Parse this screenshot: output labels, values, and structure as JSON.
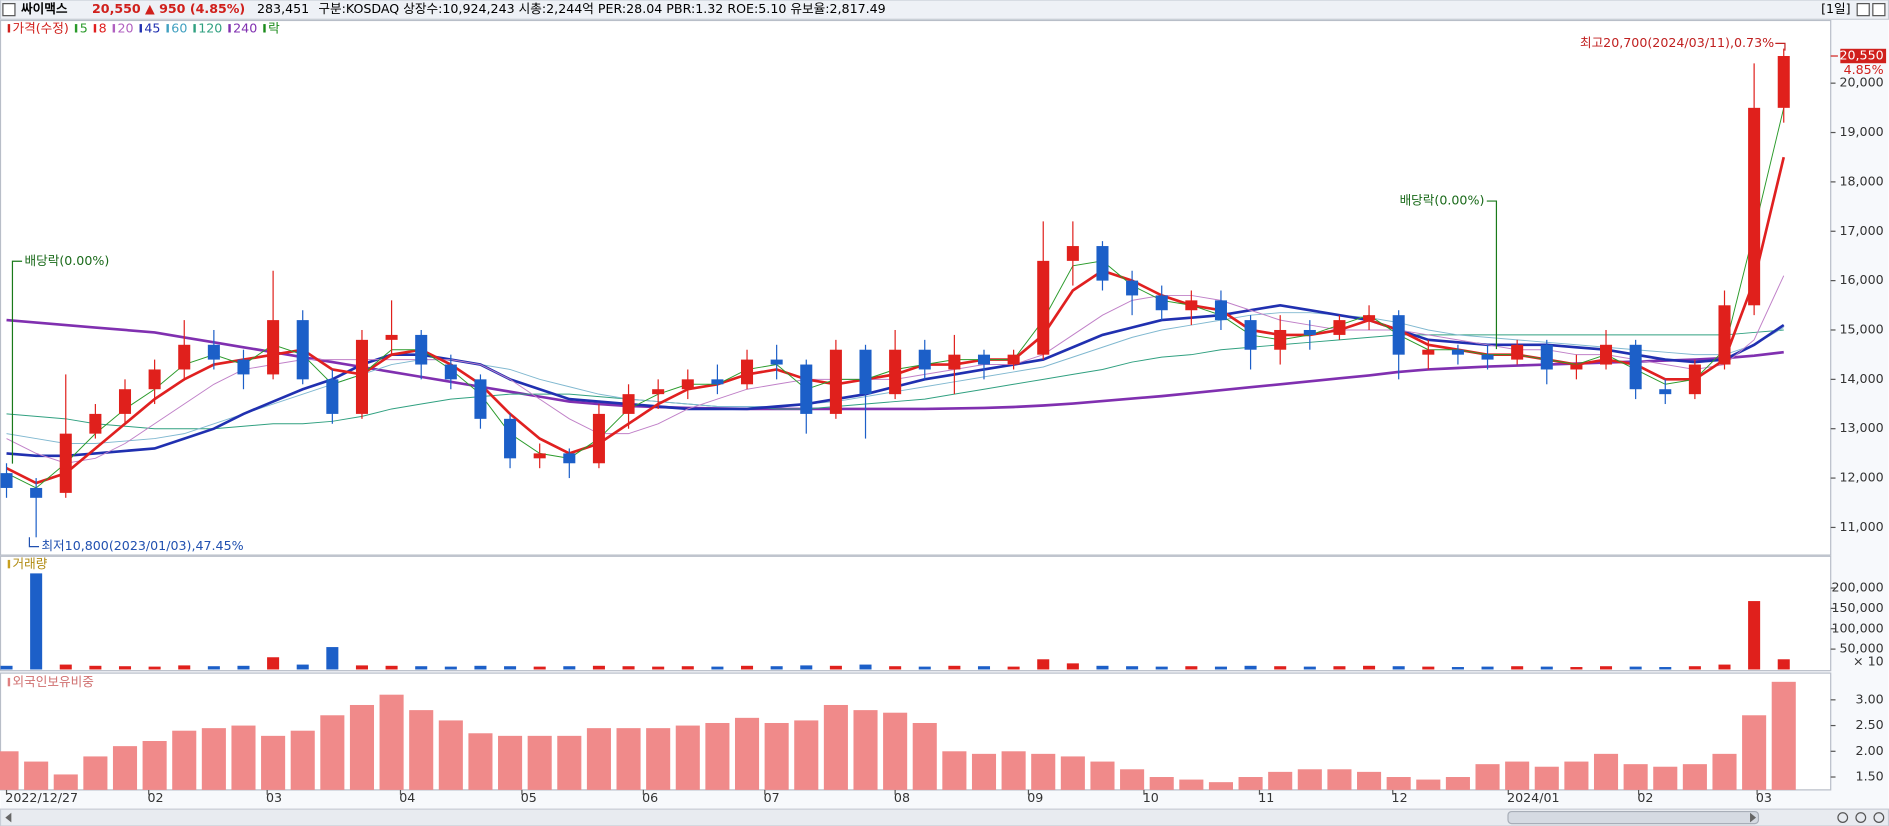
{
  "header": {
    "name": "싸이맥스",
    "price": "20,550",
    "change": "▲ 950 (4.85%)",
    "volume": "283,451",
    "info": "구분:KOSDAQ 상장수:10,924,243 시총:2,244억 PER:28.04 PBR:1.32 ROE:5.10 유보율:2,817.49",
    "period": "[1일]"
  },
  "chart_data": {
    "type": "candlestick",
    "legend": [
      {
        "name": "가격(수정)",
        "color": "#d0201c"
      },
      {
        "name": "5",
        "color": "#2a9a2a"
      },
      {
        "name": "8",
        "color": "#e02020"
      },
      {
        "name": "20",
        "color": "#b060c0"
      },
      {
        "name": "45",
        "color": "#2030b0"
      },
      {
        "name": "60",
        "color": "#40a0c0"
      },
      {
        "name": "120",
        "color": "#30a080"
      },
      {
        "name": "240",
        "color": "#8030b0"
      },
      {
        "name": "락",
        "color": "#1a8a1a"
      }
    ],
    "up_color": "#e0201c",
    "down_color": "#1c5fc8",
    "open": [
      12100,
      11800,
      11700,
      12900,
      13300,
      13800,
      14200,
      14700,
      14400,
      14100,
      15200,
      14000,
      13300,
      14800,
      14900,
      14300,
      14000,
      13200,
      12400,
      12500,
      12300,
      13300,
      13700,
      13800,
      14000,
      13900,
      14400,
      14300,
      13300,
      14600,
      13700,
      14600,
      14200,
      14500,
      14300,
      14500,
      16400,
      16700,
      16000,
      15700,
      15400,
      15600,
      15200,
      14600,
      15000,
      14900,
      15200,
      15300,
      14500,
      14600,
      14500,
      14400,
      14700,
      14200,
      14300,
      14700,
      13800,
      13700,
      14300,
      15500,
      19500
    ],
    "high": [
      12300,
      12000,
      14100,
      13500,
      14000,
      14400,
      15200,
      15000,
      14600,
      16200,
      15400,
      14200,
      15000,
      15600,
      15000,
      14500,
      14100,
      13300,
      12700,
      12600,
      13500,
      13900,
      14000,
      14200,
      14300,
      14600,
      14700,
      14400,
      14800,
      14700,
      15000,
      14800,
      14900,
      14600,
      14600,
      17200,
      17200,
      16800,
      16200,
      15900,
      15800,
      15800,
      15300,
      15300,
      15200,
      15300,
      15500,
      15400,
      14800,
      14700,
      14700,
      14800,
      14800,
      14500,
      15000,
      14800,
      14000,
      14400,
      15800,
      20400,
      20700
    ],
    "low": [
      11600,
      10800,
      11600,
      12800,
      13100,
      13500,
      14000,
      14200,
      13800,
      14000,
      13900,
      13100,
      13200,
      14500,
      14000,
      13800,
      13000,
      12200,
      12200,
      12000,
      12200,
      13000,
      13400,
      13600,
      13700,
      13800,
      14000,
      12900,
      13200,
      12800,
      13600,
      14000,
      13700,
      14000,
      14200,
      14400,
      15900,
      15800,
      15300,
      15200,
      15100,
      15000,
      14200,
      14300,
      14600,
      14800,
      15000,
      14000,
      14200,
      14300,
      14200,
      14300,
      13900,
      14000,
      14200,
      13600,
      13500,
      13600,
      14200,
      15300,
      19200
    ],
    "close": [
      11800,
      11600,
      12900,
      13300,
      13800,
      14200,
      14700,
      14400,
      14100,
      15200,
      14000,
      13300,
      14800,
      14900,
      14300,
      14000,
      13200,
      12400,
      12500,
      12300,
      13300,
      13700,
      13800,
      14000,
      13900,
      14400,
      14300,
      13300,
      14600,
      13700,
      14600,
      14200,
      14500,
      14300,
      14500,
      16400,
      16700,
      16000,
      15700,
      15400,
      15600,
      15200,
      14600,
      15000,
      14900,
      15200,
      15300,
      14500,
      14600,
      14500,
      14400,
      14700,
      14200,
      14300,
      14700,
      13800,
      13700,
      14300,
      15500,
      19500,
      20550
    ],
    "ma": [
      {
        "name": "240",
        "color": "#8030b0",
        "width": 2.2,
        "values": [
          15200,
          15150,
          15100,
          15050,
          15000,
          14950,
          14850,
          14750,
          14650,
          14550,
          14450,
          14350,
          14250,
          14150,
          14050,
          13950,
          13850,
          13750,
          13650,
          13550,
          13500,
          13460,
          13440,
          13420,
          13410,
          13400,
          13400,
          13400,
          13400,
          13400,
          13400,
          13400,
          13410,
          13420,
          13440,
          13470,
          13510,
          13560,
          13610,
          13660,
          13720,
          13780,
          13840,
          13900,
          13960,
          14020,
          14080,
          14150,
          14200,
          14230,
          14260,
          14280,
          14300,
          14320,
          14340,
          14360,
          14380,
          14400,
          14430,
          14480,
          14550
        ]
      },
      {
        "name": "120",
        "color": "#30a080",
        "width": 0.8,
        "values": [
          13300,
          13250,
          13200,
          13100,
          13050,
          13000,
          13000,
          13000,
          13050,
          13100,
          13100,
          13150,
          13250,
          13400,
          13500,
          13600,
          13650,
          13700,
          13700,
          13700,
          13650,
          13600,
          13550,
          13500,
          13450,
          13450,
          13400,
          13400,
          13450,
          13500,
          13550,
          13600,
          13700,
          13800,
          13900,
          14000,
          14100,
          14200,
          14350,
          14450,
          14500,
          14600,
          14650,
          14700,
          14750,
          14800,
          14850,
          14900,
          14900,
          14900,
          14900,
          14900,
          14900,
          14900,
          14900,
          14900,
          14900,
          14900,
          14900,
          14950,
          15000
        ]
      },
      {
        "name": "60",
        "color": "#80b8d0",
        "width": 0.8,
        "values": [
          12900,
          12800,
          12700,
          12700,
          12750,
          12800,
          12900,
          13100,
          13300,
          13500,
          13700,
          13900,
          14100,
          14300,
          14400,
          14400,
          14300,
          14200,
          14000,
          13850,
          13700,
          13600,
          13550,
          13500,
          13450,
          13450,
          13450,
          13500,
          13550,
          13650,
          13750,
          13850,
          13950,
          14050,
          14150,
          14250,
          14450,
          14650,
          14850,
          15000,
          15100,
          15200,
          15300,
          15350,
          15350,
          15300,
          15250,
          15150,
          15000,
          14900,
          14850,
          14800,
          14750,
          14700,
          14650,
          14600,
          14550,
          14500,
          14500,
          14700,
          15050
        ]
      },
      {
        "name": "45",
        "color": "#2030b0",
        "width": 2.2,
        "values": [
          12500,
          12450,
          12450,
          12500,
          12550,
          12600,
          12800,
          13000,
          13300,
          13550,
          13800,
          14000,
          14300,
          14500,
          14500,
          14400,
          14300,
          14000,
          13800,
          13600,
          13550,
          13500,
          13450,
          13400,
          13400,
          13400,
          13450,
          13500,
          13600,
          13700,
          13850,
          14000,
          14100,
          14200,
          14300,
          14400,
          14650,
          14900,
          15050,
          15200,
          15250,
          15300,
          15400,
          15500,
          15400,
          15300,
          15200,
          15000,
          14800,
          14750,
          14700,
          14700,
          14700,
          14650,
          14600,
          14500,
          14400,
          14350,
          14400,
          14700,
          15100
        ]
      },
      {
        "name": "20",
        "color": "#c080c8",
        "width": 0.8,
        "values": [
          12800,
          12500,
          12300,
          12400,
          12700,
          13100,
          13500,
          13900,
          14200,
          14300,
          14400,
          14400,
          14400,
          14400,
          14400,
          14400,
          14300,
          14000,
          13600,
          13200,
          12900,
          12900,
          13100,
          13400,
          13600,
          13800,
          13900,
          14000,
          14000,
          14000,
          14000,
          14100,
          14200,
          14300,
          14300,
          14500,
          14900,
          15300,
          15600,
          15700,
          15700,
          15600,
          15400,
          15200,
          15100,
          15000,
          15000,
          15000,
          14900,
          14800,
          14700,
          14600,
          14600,
          14500,
          14500,
          14400,
          14300,
          14200,
          14300,
          14800,
          16100
        ]
      },
      {
        "name": "8",
        "color": "#e02020",
        "width": 2.2,
        "values": [
          12200,
          11900,
          12100,
          12600,
          13100,
          13600,
          14000,
          14300,
          14400,
          14500,
          14600,
          14200,
          14100,
          14500,
          14600,
          14300,
          13900,
          13300,
          12800,
          12500,
          12700,
          13100,
          13500,
          13800,
          13900,
          14100,
          14200,
          14000,
          13900,
          14000,
          14100,
          14300,
          14300,
          14400,
          14400,
          14900,
          15800,
          16200,
          16000,
          15700,
          15500,
          15400,
          15000,
          14900,
          14900,
          15000,
          15200,
          15000,
          14700,
          14600,
          14500,
          14500,
          14400,
          14300,
          14400,
          14300,
          14000,
          14000,
          14400,
          16000,
          18500
        ]
      },
      {
        "name": "5",
        "color": "#2a9a2a",
        "width": 0.8,
        "values": [
          12100,
          11800,
          12300,
          12900,
          13400,
          13800,
          14300,
          14500,
          14300,
          14700,
          14500,
          13900,
          14100,
          14600,
          14600,
          14200,
          13700,
          12900,
          12500,
          12400,
          12800,
          13400,
          13700,
          13900,
          13900,
          14200,
          14300,
          13800,
          14000,
          14000,
          14200,
          14300,
          14400,
          14400,
          14400,
          15200,
          16300,
          16400,
          15900,
          15600,
          15500,
          15300,
          14900,
          14800,
          14900,
          15100,
          15300,
          14900,
          14600,
          14600,
          14500,
          14500,
          14400,
          14300,
          14500,
          14200,
          13900,
          14000,
          14600,
          17000,
          19500
        ]
      }
    ],
    "ylim": [
      10440,
      21270
    ],
    "yticks": [
      {
        "value": 11000,
        "label": "11,000"
      },
      {
        "value": 12000,
        "label": "12,000"
      },
      {
        "value": 13000,
        "label": "13,000"
      },
      {
        "value": 14000,
        "label": "14,000"
      },
      {
        "value": 15000,
        "label": "15,000"
      },
      {
        "value": 16000,
        "label": "16,000"
      },
      {
        "value": 17000,
        "label": "17,000"
      },
      {
        "value": 18000,
        "label": "18,000"
      },
      {
        "value": 19000,
        "label": "19,000"
      },
      {
        "value": 20000,
        "label": "20,000"
      }
    ],
    "xticks": [
      {
        "value": 0,
        "label": "2022/12/27"
      },
      {
        "value": 4.8,
        "label": "02"
      },
      {
        "value": 8.8,
        "label": "03"
      },
      {
        "value": 13.3,
        "label": "04"
      },
      {
        "value": 17.4,
        "label": "05"
      },
      {
        "value": 21.5,
        "label": "06"
      },
      {
        "value": 25.6,
        "label": "07"
      },
      {
        "value": 30,
        "label": "08"
      },
      {
        "value": 34.5,
        "label": "09"
      },
      {
        "value": 38.4,
        "label": "10"
      },
      {
        "value": 42.3,
        "label": "11"
      },
      {
        "value": 46.8,
        "label": "12"
      },
      {
        "value": 50.7,
        "label": "2024/01"
      },
      {
        "value": 55.1,
        "label": "02"
      },
      {
        "value": 59.1,
        "label": "03"
      }
    ],
    "high_label": "최고20,700(2024/03/11),0.73%",
    "low_label": "최저10,800(2023/01/03),47.45%",
    "ex_dividend": [
      {
        "label": "배당락(0.00%)",
        "index": 0.2
      },
      {
        "label": "배당락(0.00%)",
        "index": 50.3
      }
    ],
    "price_tag": {
      "value": 20550,
      "label": "20,550",
      "change": "4.85%"
    },
    "volume": {
      "title": "거래량",
      "unit_note": "× 10",
      "values": [
        9000,
        236000,
        12000,
        9000,
        8000,
        7000,
        10000,
        8000,
        9000,
        30000,
        12000,
        55000,
        10000,
        9000,
        8000,
        7000,
        9000,
        8000,
        7000,
        8000,
        9000,
        8000,
        7000,
        8000,
        7000,
        9000,
        8000,
        10000,
        9000,
        12000,
        8000,
        7000,
        9000,
        8000,
        7000,
        25000,
        15000,
        9000,
        8000,
        7000,
        8000,
        7000,
        9000,
        8000,
        7000,
        8000,
        9000,
        8000,
        7000,
        6000,
        7000,
        8000,
        7000,
        6000,
        8000,
        7000,
        6000,
        8000,
        12000,
        168000,
        25000
      ],
      "ylim": [
        0,
        278000
      ],
      "yticks": [
        {
          "value": 50000,
          "label": "50,000"
        },
        {
          "value": 100000,
          "label": "100,000"
        },
        {
          "value": 150000,
          "label": "150,000"
        },
        {
          "value": 200000,
          "label": "200,000"
        }
      ]
    },
    "foreign": {
      "title": "외국인보유비중",
      "color": "#f08a8a",
      "values": [
        2.0,
        1.8,
        1.55,
        1.9,
        2.1,
        2.2,
        2.4,
        2.45,
        2.5,
        2.3,
        2.4,
        2.7,
        2.9,
        3.1,
        2.8,
        2.6,
        2.35,
        2.3,
        2.3,
        2.3,
        2.45,
        2.45,
        2.45,
        2.5,
        2.55,
        2.65,
        2.55,
        2.6,
        2.9,
        2.8,
        2.75,
        2.55,
        2.0,
        1.95,
        2.0,
        1.95,
        1.9,
        1.8,
        1.65,
        1.5,
        1.45,
        1.4,
        1.5,
        1.6,
        1.65,
        1.65,
        1.6,
        1.5,
        1.45,
        1.5,
        1.75,
        1.8,
        1.7,
        1.8,
        1.95,
        1.75,
        1.7,
        1.75,
        1.95,
        2.7,
        3.35
      ],
      "ylim": [
        1.25,
        3.52
      ],
      "yticks": [
        {
          "value": 1.5,
          "label": "1.50"
        },
        {
          "value": 2,
          "label": "2.00"
        },
        {
          "value": 2.5,
          "label": "2.50"
        },
        {
          "value": 3,
          "label": "3.00"
        }
      ]
    }
  }
}
